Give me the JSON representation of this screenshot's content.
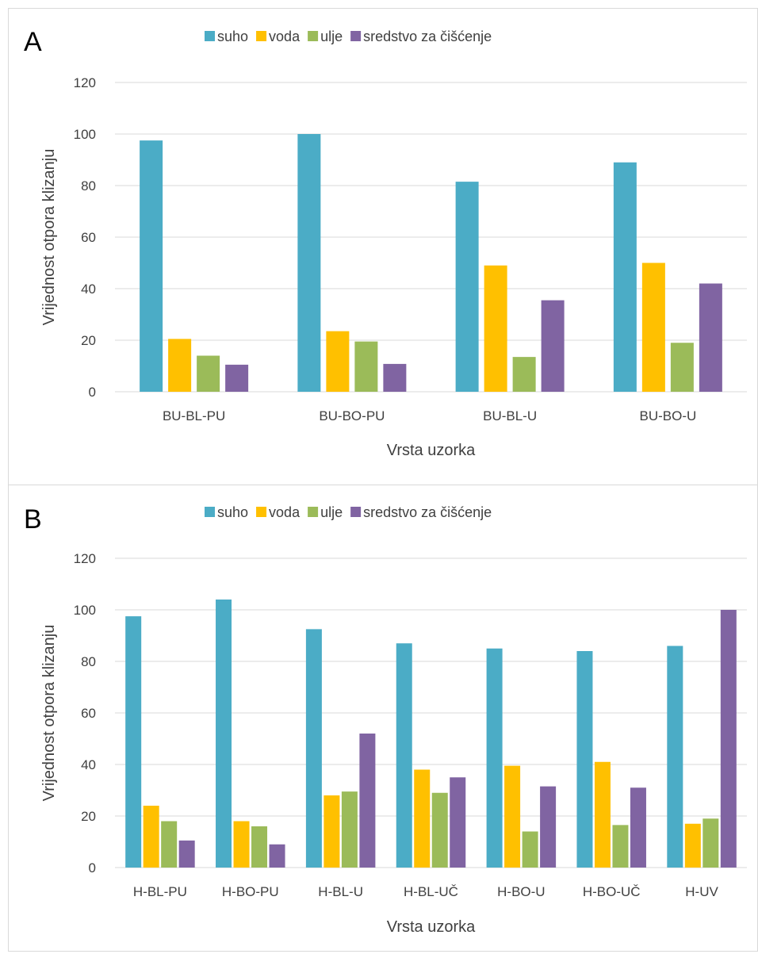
{
  "chart_data": [
    {
      "type": "bar",
      "panel_label": "A",
      "categories": [
        "BU-BL-PU",
        "BU-BO-PU",
        "BU-BL-U",
        "BU-BO-U"
      ],
      "series": [
        {
          "name": "suho",
          "color": "#4BACC6",
          "values": [
            97.5,
            100,
            81.5,
            89
          ]
        },
        {
          "name": "voda",
          "color": "#FFC000",
          "values": [
            20.5,
            23.5,
            49,
            50
          ]
        },
        {
          "name": "ulje",
          "color": "#9BBB59",
          "values": [
            14,
            19.5,
            13.5,
            19
          ]
        },
        {
          "name": "sredstvo za čišćenje",
          "color": "#8064A2",
          "values": [
            10.5,
            10.8,
            35.5,
            42
          ]
        }
      ],
      "xlabel": "Vrsta uzorka",
      "ylabel": "Vrijednost otpora klizanju",
      "ylim": [
        0,
        120
      ],
      "yticks": [
        "0",
        "20",
        "40",
        "60",
        "80",
        "100",
        "120"
      ],
      "grid": true,
      "legend": "top"
    },
    {
      "type": "bar",
      "panel_label": "B",
      "categories": [
        "H-BL-PU",
        "H-BO-PU",
        "H-BL-U",
        "H-BL-UČ",
        "H-BO-U",
        "H-BO-UČ",
        "H-UV"
      ],
      "series": [
        {
          "name": "suho",
          "color": "#4BACC6",
          "values": [
            97.5,
            104,
            92.5,
            87,
            85,
            84,
            86
          ]
        },
        {
          "name": "voda",
          "color": "#FFC000",
          "values": [
            24,
            18,
            28,
            38,
            39.5,
            41,
            17
          ]
        },
        {
          "name": "ulje",
          "color": "#9BBB59",
          "values": [
            18,
            16,
            29.5,
            29,
            14,
            16.5,
            19
          ]
        },
        {
          "name": "sredstvo za čišćenje",
          "color": "#8064A2",
          "values": [
            10.5,
            9,
            52,
            35,
            31.5,
            31,
            100
          ]
        }
      ],
      "xlabel": "Vrsta uzorka",
      "ylabel": "Vrijednost otpora klizanju",
      "ylim": [
        0,
        120
      ],
      "yticks": [
        "0",
        "20",
        "40",
        "60",
        "80",
        "100",
        "120"
      ],
      "grid": true,
      "legend": "top"
    }
  ]
}
